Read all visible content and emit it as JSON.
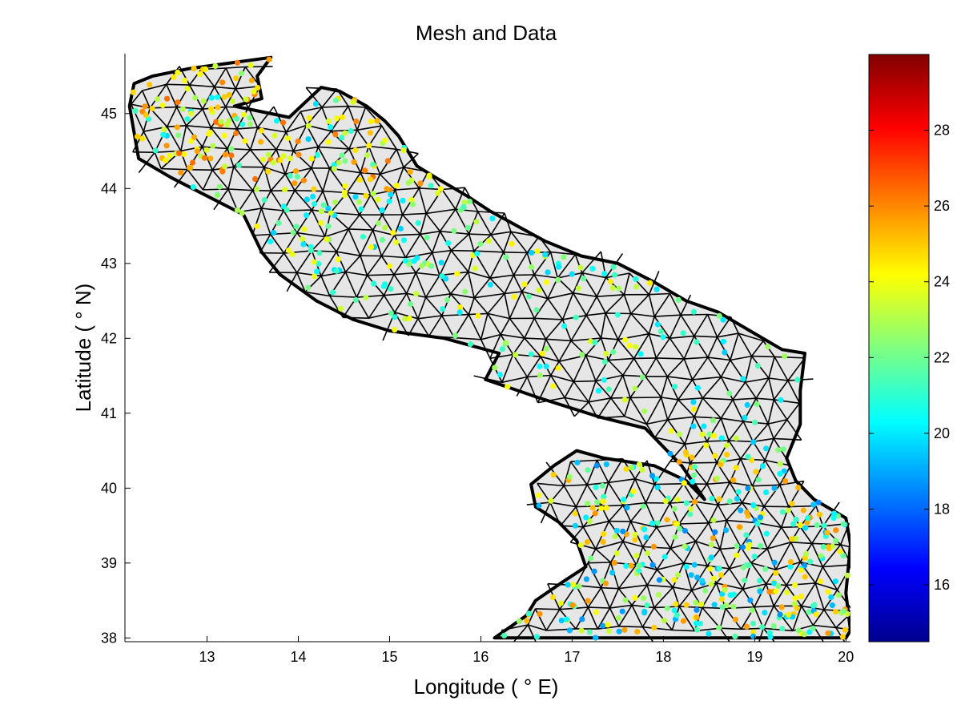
{
  "chart_data": {
    "type": "scatter",
    "title": "Mesh and Data",
    "xlabel": "Longitude ( ° E)",
    "ylabel": "Latitude ( ° N)",
    "xlim": [
      12.1,
      20.05
    ],
    "ylim": [
      37.95,
      45.8
    ],
    "xticks": [
      13,
      14,
      15,
      16,
      17,
      18,
      19,
      20
    ],
    "yticks": [
      38,
      39,
      40,
      41,
      42,
      43,
      44,
      45
    ],
    "colorbar": {
      "colormap": "jet",
      "range": [
        14.5,
        30
      ],
      "ticks": [
        16,
        18,
        20,
        22,
        24,
        26,
        28
      ]
    },
    "mesh": {
      "fill": "#e6e6e6",
      "edge": "#000000",
      "outline": [
        [
          12.2,
          45.4
        ],
        [
          12.4,
          45.5
        ],
        [
          12.8,
          45.6
        ],
        [
          13.1,
          45.65
        ],
        [
          13.7,
          45.75
        ],
        [
          13.55,
          45.5
        ],
        [
          13.6,
          45.2
        ],
        [
          13.3,
          45.1
        ],
        [
          13.9,
          44.95
        ],
        [
          14.25,
          45.35
        ],
        [
          14.45,
          45.3
        ],
        [
          14.75,
          45.1
        ],
        [
          14.95,
          44.9
        ],
        [
          15.1,
          44.7
        ],
        [
          15.3,
          44.3
        ],
        [
          15.5,
          44.15
        ],
        [
          15.85,
          43.9
        ],
        [
          16.1,
          43.7
        ],
        [
          16.4,
          43.5
        ],
        [
          16.7,
          43.3
        ],
        [
          17.1,
          43.1
        ],
        [
          17.5,
          43.0
        ],
        [
          17.9,
          42.75
        ],
        [
          18.25,
          42.5
        ],
        [
          18.6,
          42.35
        ],
        [
          18.95,
          42.1
        ],
        [
          19.3,
          41.85
        ],
        [
          19.55,
          41.8
        ],
        [
          19.5,
          41.3
        ],
        [
          19.5,
          40.85
        ],
        [
          19.35,
          40.4
        ],
        [
          19.45,
          40.1
        ],
        [
          19.65,
          39.85
        ],
        [
          20.0,
          39.6
        ],
        [
          20.05,
          39.25
        ],
        [
          20.0,
          38.6
        ],
        [
          20.05,
          38.1
        ],
        [
          20.0,
          38.0
        ],
        [
          16.15,
          38.0
        ],
        [
          16.5,
          38.3
        ],
        [
          16.6,
          38.5
        ],
        [
          16.9,
          38.75
        ],
        [
          17.15,
          38.95
        ],
        [
          17.05,
          39.3
        ],
        [
          16.85,
          39.55
        ],
        [
          16.6,
          39.75
        ],
        [
          16.55,
          40.05
        ],
        [
          16.8,
          40.3
        ],
        [
          17.05,
          40.5
        ],
        [
          17.35,
          40.4
        ],
        [
          17.9,
          40.3
        ],
        [
          18.25,
          40.1
        ],
        [
          18.45,
          39.85
        ],
        [
          18.2,
          40.3
        ],
        [
          17.8,
          40.8
        ],
        [
          17.3,
          40.95
        ],
        [
          16.65,
          41.2
        ],
        [
          16.05,
          41.45
        ],
        [
          16.2,
          41.8
        ],
        [
          15.6,
          42.0
        ],
        [
          15.0,
          42.1
        ],
        [
          14.6,
          42.25
        ],
        [
          14.2,
          42.5
        ],
        [
          13.8,
          42.85
        ],
        [
          13.6,
          43.15
        ],
        [
          13.4,
          43.65
        ],
        [
          13.0,
          43.9
        ],
        [
          12.6,
          44.15
        ],
        [
          12.25,
          44.4
        ],
        [
          12.2,
          44.75
        ],
        [
          12.15,
          45.1
        ]
      ]
    }
  }
}
